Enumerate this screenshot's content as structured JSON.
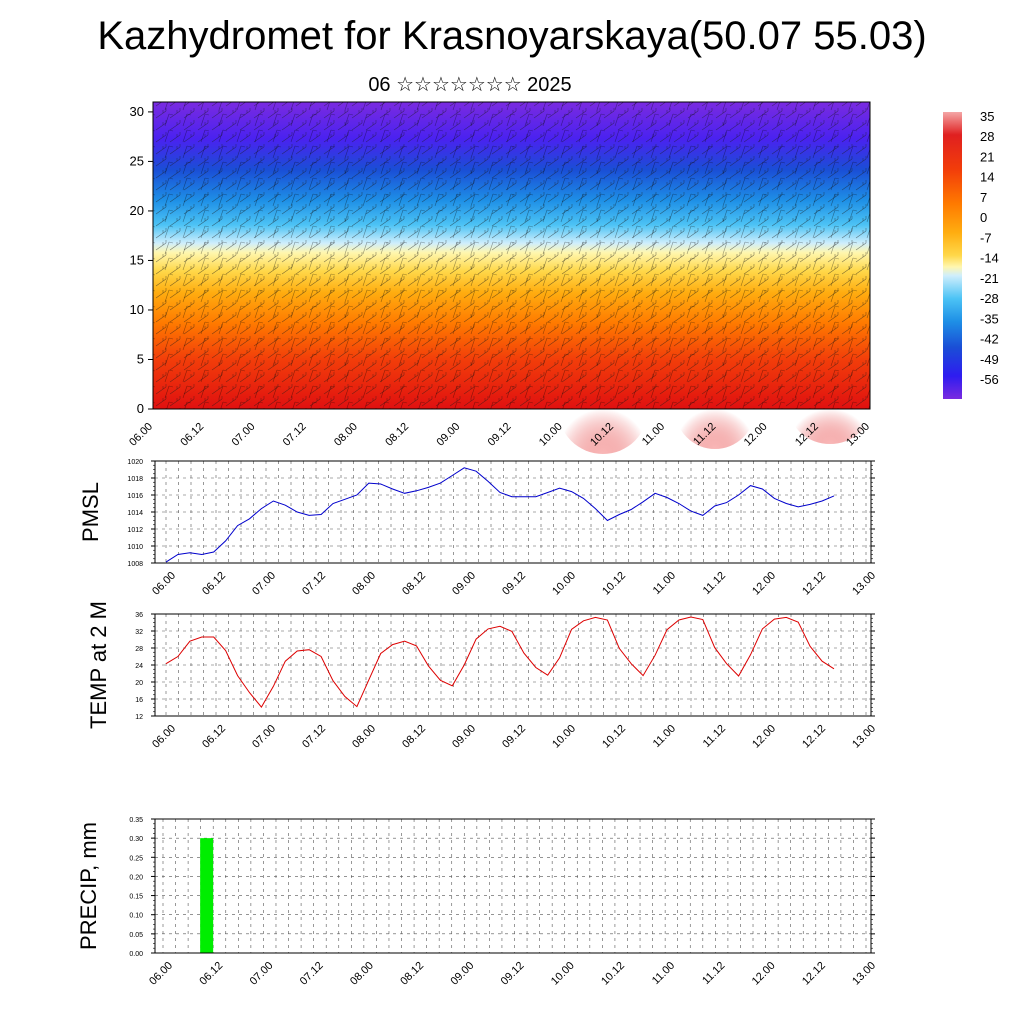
{
  "header": {
    "title": "Kazhydromet for Krasnoyarskaya(50.07 55.03)",
    "subtitle": "06 ☆☆☆☆☆☆☆ 2025"
  },
  "time_axis": [
    "06.00",
    "06.12",
    "07.00",
    "07.12",
    "08.00",
    "08.12",
    "09.00",
    "09.12",
    "10.00",
    "10.12",
    "11.00",
    "11.12",
    "12.00",
    "12.12",
    "13.00"
  ],
  "chart_data": [
    {
      "type": "heatmap",
      "description_field": "temperature cross-section with wind barbs",
      "x": [
        "06.00",
        "06.12",
        "07.00",
        "07.12",
        "08.00",
        "08.12",
        "09.00",
        "09.12",
        "10.00",
        "10.12",
        "11.00",
        "11.12",
        "12.00",
        "12.12",
        "13.00"
      ],
      "y_ticks": [
        0,
        5,
        10,
        15,
        20,
        25,
        30
      ],
      "ylim": [
        0,
        31
      ],
      "colorbar": {
        "labels": [
          "35",
          "28",
          "21",
          "14",
          "7",
          "0",
          "-7",
          "-14",
          "-21",
          "-28",
          "-35",
          "-42",
          "-49",
          "-56"
        ],
        "colors": [
          "#f4a6a6",
          "#e02020",
          "#f23d0a",
          "#ff7a00",
          "#ffad10",
          "#ffd84a",
          "#fff7b0",
          "#cfeefc",
          "#4cc3f5",
          "#1e8fe6",
          "#1a4ed6",
          "#2e1cf0",
          "#5a20e0",
          "#7a2be0"
        ]
      }
    },
    {
      "type": "line",
      "ylabel": "PMSL",
      "ylim": [
        1008,
        1020
      ],
      "y_ticks": [
        1008,
        1010,
        1012,
        1014,
        1016,
        1018,
        1020
      ],
      "color": "#0000cc",
      "series": [
        {
          "values": [
            1008.1,
            1009.0,
            1009.2,
            1009.0,
            1009.3,
            1010.6,
            1012.4,
            1013.2,
            1014.4,
            1015.3,
            1014.8,
            1014.0,
            1013.6,
            1013.7,
            1015.0,
            1015.5,
            1016.0,
            1017.4,
            1017.3,
            1016.7,
            1016.2,
            1016.5,
            1016.9,
            1017.4,
            1018.3,
            1019.2,
            1018.8,
            1017.6,
            1016.3,
            1015.8,
            1015.8,
            1015.8,
            1016.3,
            1016.8,
            1016.4,
            1015.6,
            1014.4,
            1013.0,
            1013.7,
            1014.3,
            1015.2,
            1016.2,
            1015.7,
            1015.0,
            1014.1,
            1013.6,
            1014.7,
            1015.1,
            1016.0,
            1017.1,
            1016.7,
            1015.6,
            1015.0,
            1014.6,
            1014.9,
            1015.3,
            1015.9
          ]
        }
      ]
    },
    {
      "type": "line",
      "ylabel": "TEMP at 2 M",
      "ylim": [
        12,
        36
      ],
      "y_ticks": [
        12,
        16,
        20,
        24,
        28,
        32,
        36
      ],
      "color": "#dd0000",
      "series": [
        {
          "values": [
            24.3,
            26.0,
            29.6,
            30.6,
            30.6,
            27.4,
            21.5,
            17.5,
            14.1,
            19.0,
            24.9,
            27.3,
            27.6,
            26.0,
            20.3,
            16.6,
            14.2,
            20.5,
            26.7,
            28.8,
            29.6,
            28.5,
            23.8,
            20.4,
            19.1,
            24.0,
            30.1,
            32.5,
            33.1,
            31.9,
            26.8,
            23.4,
            21.6,
            25.7,
            32.4,
            34.4,
            35.2,
            34.6,
            27.9,
            24.3,
            21.5,
            26.3,
            32.3,
            34.6,
            35.3,
            34.7,
            28.1,
            24.3,
            21.4,
            26.4,
            32.5,
            34.8,
            35.2,
            34.1,
            28.4,
            24.9,
            23.1
          ]
        }
      ]
    },
    {
      "type": "bar",
      "ylabel": "PRECIP, mm",
      "ylim": [
        0,
        0.35
      ],
      "y_ticks": [
        "0.00",
        "0.05",
        "0.10",
        "0.15",
        "0.20",
        "0.25",
        "0.30",
        "0.35"
      ],
      "color": "#00ee00",
      "bars": [
        {
          "x_index": 3,
          "value": 0.3
        }
      ]
    }
  ]
}
